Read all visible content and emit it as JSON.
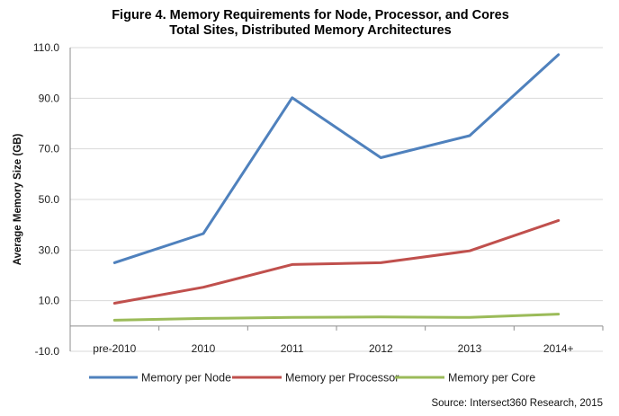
{
  "chart_data": {
    "type": "line",
    "title_line1": "Figure 4. Memory Requirements for Node, Processor, and Cores",
    "title_line2": "Total Sites, Distributed Memory Architectures",
    "ylabel": "Average Memory Size (GB)",
    "xlabel": "",
    "ylim": [
      -10,
      110
    ],
    "yticks": [
      -10,
      10,
      30,
      50,
      70,
      90,
      110
    ],
    "ytick_labels": [
      "-10.0",
      "10.0",
      "30.0",
      "50.0",
      "70.0",
      "90.0",
      "110.0"
    ],
    "categories": [
      "pre-2010",
      "2010",
      "2011",
      "2012",
      "2013",
      "2014+"
    ],
    "grid": true,
    "legend_position": "bottom",
    "series": [
      {
        "name": "Memory per Node",
        "color": "#4f81bd",
        "values": [
          25.0,
          36.5,
          90.2,
          66.5,
          75.2,
          107.2
        ]
      },
      {
        "name": "Memory per Processor",
        "color": "#c0504d",
        "values": [
          9.0,
          15.3,
          24.3,
          25.0,
          29.7,
          41.7
        ]
      },
      {
        "name": "Memory per Core",
        "color": "#9bbb59",
        "values": [
          2.3,
          3.0,
          3.4,
          3.6,
          3.4,
          4.7
        ]
      }
    ],
    "source": "Source: Intersect360 Research, 2015"
  }
}
